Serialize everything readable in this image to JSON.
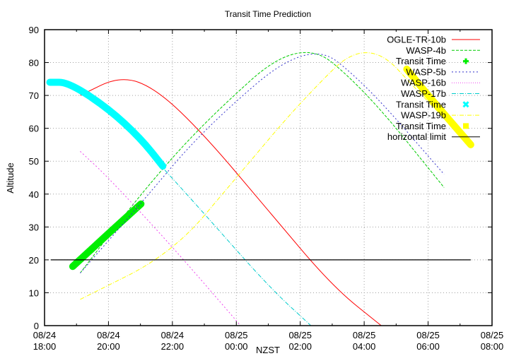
{
  "chart_data": {
    "type": "line",
    "title": "Transit Time Prediction",
    "xlabel": "NZST",
    "ylabel": "Altitude",
    "ylim": [
      0,
      90
    ],
    "xlim": [
      "08/24 18:00",
      "08/25 08:00"
    ],
    "grid": true,
    "legend_position": "top-right (inside)",
    "x_ticks": [
      {
        "date": "08/24",
        "time": "18:00"
      },
      {
        "date": "08/24",
        "time": "20:00"
      },
      {
        "date": "08/24",
        "time": "22:00"
      },
      {
        "date": "08/25",
        "time": "00:00"
      },
      {
        "date": "08/25",
        "time": "02:00"
      },
      {
        "date": "08/25",
        "time": "04:00"
      },
      {
        "date": "08/25",
        "time": "06:00"
      },
      {
        "date": "08/25",
        "time": "08:00"
      }
    ],
    "y_ticks": [
      "0",
      "10",
      "20",
      "30",
      "40",
      "50",
      "60",
      "70",
      "80",
      "90"
    ],
    "series": [
      {
        "name": "OGLE-TR-10b",
        "color": "#ff0000",
        "style": "solid",
        "points": [
          [
            "19:07",
            70
          ],
          [
            "20:23",
            76
          ],
          [
            "21:30",
            72
          ],
          [
            "23:00",
            58
          ],
          [
            "01:00",
            35
          ],
          [
            "03:00",
            12
          ],
          [
            "04:32",
            0
          ]
        ]
      },
      {
        "name": "WASP-4b",
        "color": "#00cc00",
        "style": "dashed",
        "points": [
          [
            "19:07",
            16
          ],
          [
            "21:00",
            40
          ],
          [
            "23:00",
            62
          ],
          [
            "02:00",
            88
          ],
          [
            "04:00",
            72
          ],
          [
            "06:30",
            42
          ]
        ]
      },
      {
        "name": "Transit Time",
        "color": "#00ee00",
        "style": "thick",
        "of": "WASP-4b",
        "points": [
          [
            "18:53",
            18
          ],
          [
            "20:00",
            28
          ],
          [
            "21:01",
            37
          ]
        ]
      },
      {
        "name": "WASP-5b",
        "color": "#3333cc",
        "style": "dotted",
        "points": [
          [
            "19:07",
            16
          ],
          [
            "21:00",
            37
          ],
          [
            "23:00",
            60
          ],
          [
            "02:15",
            87
          ],
          [
            "04:00",
            74
          ],
          [
            "06:30",
            46
          ]
        ]
      },
      {
        "name": "WASP-16b",
        "color": "#ee44ee",
        "style": "dotted",
        "points": [
          [
            "19:07",
            53
          ],
          [
            "20:00",
            45
          ],
          [
            "22:00",
            24
          ],
          [
            "00:08",
            0
          ]
        ]
      },
      {
        "name": "WASP-17b",
        "color": "#00cccc",
        "style": "dash-dot",
        "points": [
          [
            "18:10",
            74
          ],
          [
            "19:00",
            72
          ],
          [
            "20:00",
            66
          ],
          [
            "21:42",
            48
          ],
          [
            "23:00",
            34
          ],
          [
            "01:00",
            12
          ],
          [
            "02:20",
            0
          ]
        ]
      },
      {
        "name": "Transit Time",
        "color": "#00ffff",
        "style": "thick",
        "of": "WASP-17b",
        "points": [
          [
            "18:10",
            74
          ],
          [
            "18:45",
            74
          ],
          [
            "20:00",
            66
          ],
          [
            "21:00",
            57
          ],
          [
            "21:42",
            48.5
          ]
        ]
      },
      {
        "name": "WASP-19b",
        "color": "#ffff00",
        "style": "dash-dot",
        "points": [
          [
            "19:07",
            8
          ],
          [
            "22:00",
            22
          ],
          [
            "00:00",
            45
          ],
          [
            "02:00",
            68
          ],
          [
            "04:05",
            88
          ],
          [
            "06:00",
            68
          ],
          [
            "07:20",
            55
          ]
        ]
      },
      {
        "name": "Transit Time",
        "color": "#ffff00",
        "style": "thick",
        "of": "WASP-19b",
        "points": [
          [
            "05:20",
            78
          ],
          [
            "06:00",
            70
          ],
          [
            "07:20",
            55
          ]
        ]
      },
      {
        "name": "horizontal limit",
        "color": "#000000",
        "style": "solid",
        "points": [
          [
            "18:12",
            20
          ],
          [
            "07:20",
            20
          ]
        ]
      }
    ]
  },
  "legend": [
    {
      "label": "OGLE-TR-10b",
      "color": "#ff0000",
      "kind": "line",
      "dash": ""
    },
    {
      "label": "WASP-4b",
      "color": "#00cc00",
      "kind": "line",
      "dash": "4,2"
    },
    {
      "label": "Transit Time",
      "color": "#00ee00",
      "kind": "plus",
      "dash": ""
    },
    {
      "label": "WASP-5b",
      "color": "#3333cc",
      "kind": "line",
      "dash": "2,3"
    },
    {
      "label": "WASP-16b",
      "color": "#ee44ee",
      "kind": "line",
      "dash": "1,2"
    },
    {
      "label": "WASP-17b",
      "color": "#00cccc",
      "kind": "line",
      "dash": "6,2,1,2"
    },
    {
      "label": "Transit Time",
      "color": "#00ffff",
      "kind": "cross",
      "dash": ""
    },
    {
      "label": "WASP-19b",
      "color": "#ffff00",
      "kind": "line",
      "dash": "6,2,1,2"
    },
    {
      "label": "Transit Time",
      "color": "#ffff00",
      "kind": "square",
      "dash": ""
    },
    {
      "label": "horizontal limit",
      "color": "#000000",
      "kind": "line",
      "dash": ""
    }
  ]
}
